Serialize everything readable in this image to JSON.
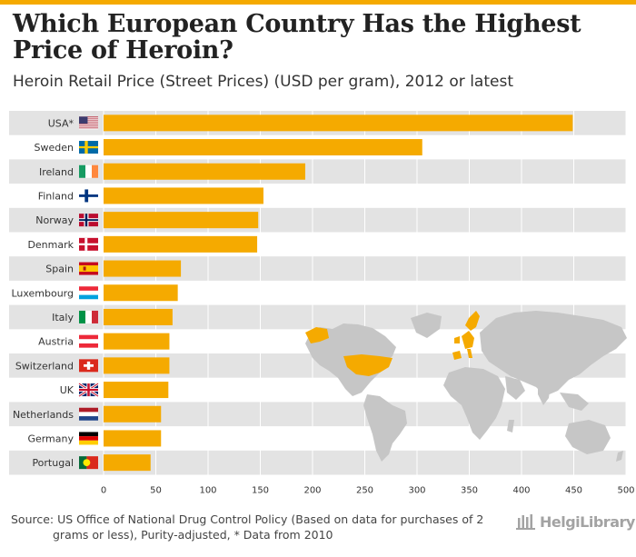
{
  "title": "Which European Country Has the Highest Price of Heroin?",
  "subtitle": "Heroin Retail Price (Street Prices) (USD per gram), 2012 or latest",
  "source_lines": [
    "Source: US Office of National Drug Control Policy (Based on data for purchases of 2",
    "grams or less), Purity-adjusted, * Data from 2010"
  ],
  "logo_text": "HelgiLibrary",
  "colors": {
    "bar": "#f5aa00",
    "row_band": "#e3e3e3",
    "map_land": "#c6c6c6",
    "map_highlight": "#f5aa00"
  },
  "chart_data": {
    "type": "bar",
    "orientation": "horizontal",
    "title": "Which European Country Has the Highest Price of Heroin?",
    "subtitle": "Heroin Retail Price (Street Prices) (USD per gram), 2012 or latest",
    "xlabel": "",
    "ylabel": "",
    "xlim": [
      0,
      500
    ],
    "xticks": [
      0,
      50,
      100,
      150,
      200,
      250,
      300,
      350,
      400,
      450,
      500
    ],
    "categories": [
      "USA*",
      "Sweden",
      "Ireland",
      "Finland",
      "Norway",
      "Denmark",
      "Spain",
      "Luxembourg",
      "Italy",
      "Austria",
      "Switzerland",
      "UK",
      "Netherlands",
      "Germany",
      "Portugal"
    ],
    "flags": [
      "us-flag-icon",
      "sweden-flag-icon",
      "ireland-flag-icon",
      "finland-flag-icon",
      "norway-flag-icon",
      "denmark-flag-icon",
      "spain-flag-icon",
      "luxembourg-flag-icon",
      "italy-flag-icon",
      "austria-flag-icon",
      "switzerland-flag-icon",
      "uk-flag-icon",
      "netherlands-flag-icon",
      "germany-flag-icon",
      "portugal-flag-icon"
    ],
    "values": [
      449,
      305,
      193,
      153,
      148,
      147,
      74,
      71,
      66,
      63,
      63,
      62,
      55,
      55,
      45
    ],
    "grid": true
  }
}
